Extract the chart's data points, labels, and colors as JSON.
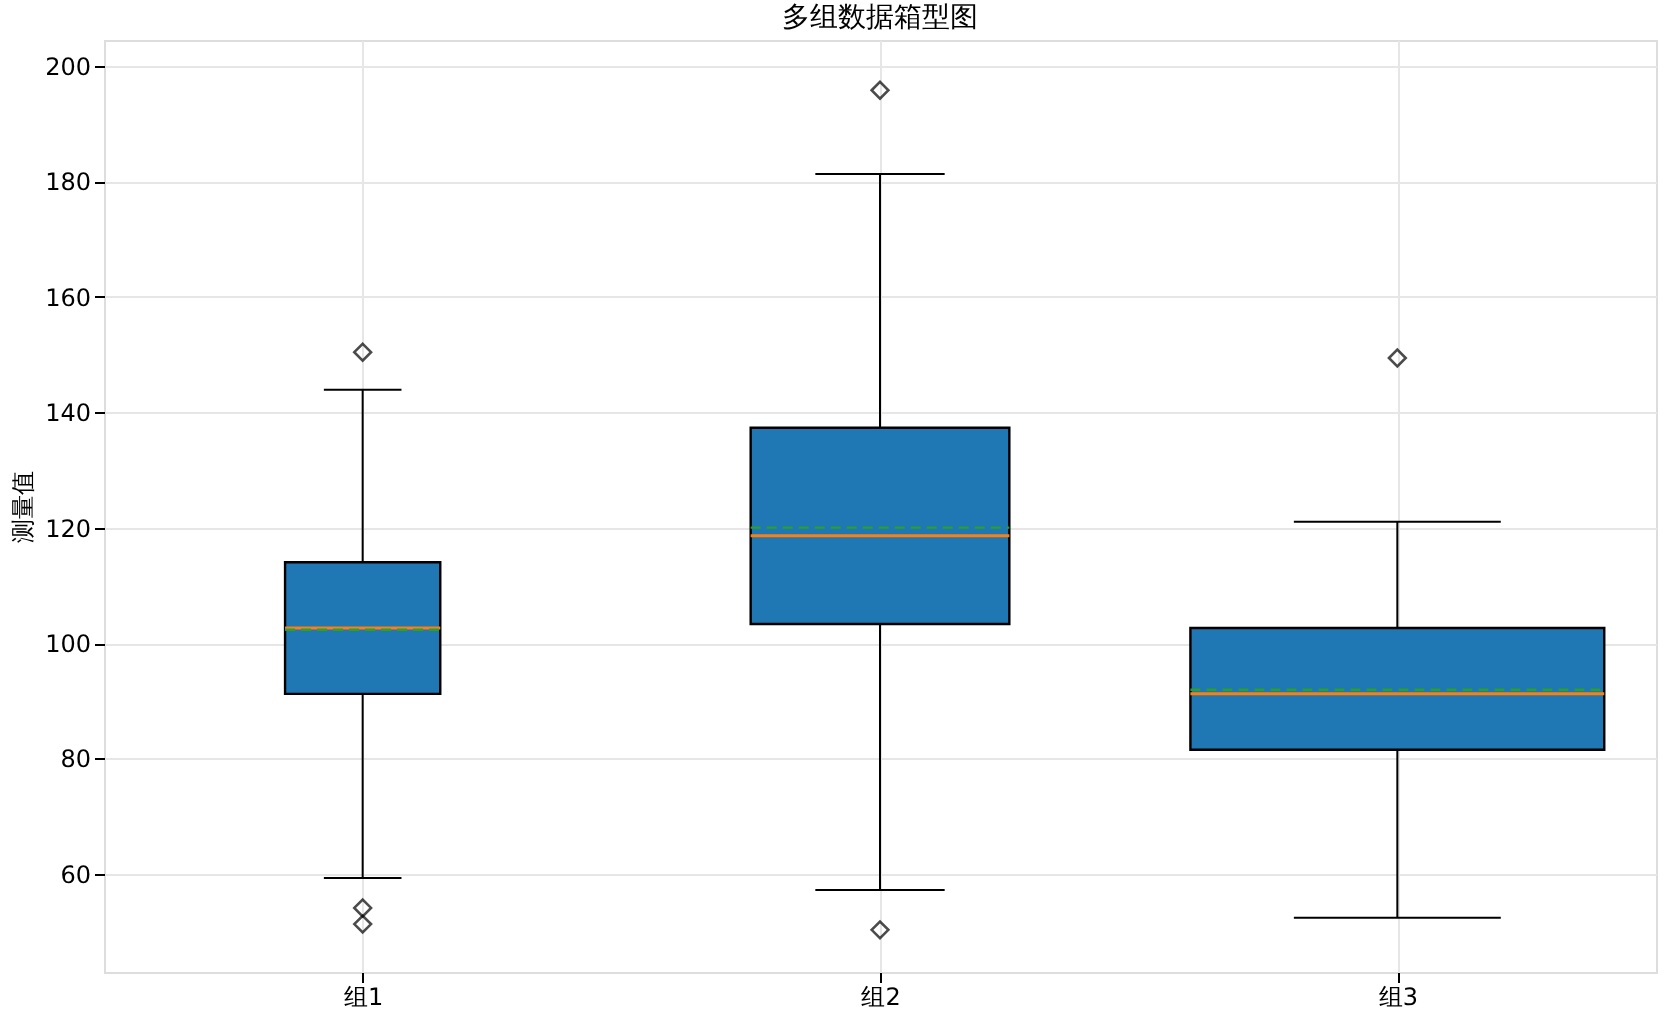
{
  "chart_data": {
    "type": "box",
    "title": "多组数据箱型图",
    "ylabel": "测量值",
    "categories": [
      "组1",
      "组2",
      "组3"
    ],
    "color": "#1f77b4",
    "ylim": [
      43,
      204.5
    ],
    "yticks": [
      60,
      80,
      100,
      120,
      140,
      160,
      180,
      200
    ],
    "grid": true,
    "marker": "diamond",
    "boxes": [
      {
        "low": 59.3,
        "q1": 91.2,
        "median": 102.6,
        "q3": 114,
        "high": 143.9,
        "mean": 102.3,
        "outliers": [
          150.4,
          54.1,
          51.3
        ]
      },
      {
        "low": 57.2,
        "q1": 103.3,
        "median": 118.6,
        "q3": 137.3,
        "high": 181.3,
        "mean": 120,
        "outliers": [
          195.8,
          50.3
        ]
      },
      {
        "low": 52.4,
        "q1": 81.5,
        "median": 91.2,
        "q3": 102.6,
        "high": 121,
        "mean": 91.9,
        "outliers": [
          149.4
        ]
      }
    ]
  }
}
